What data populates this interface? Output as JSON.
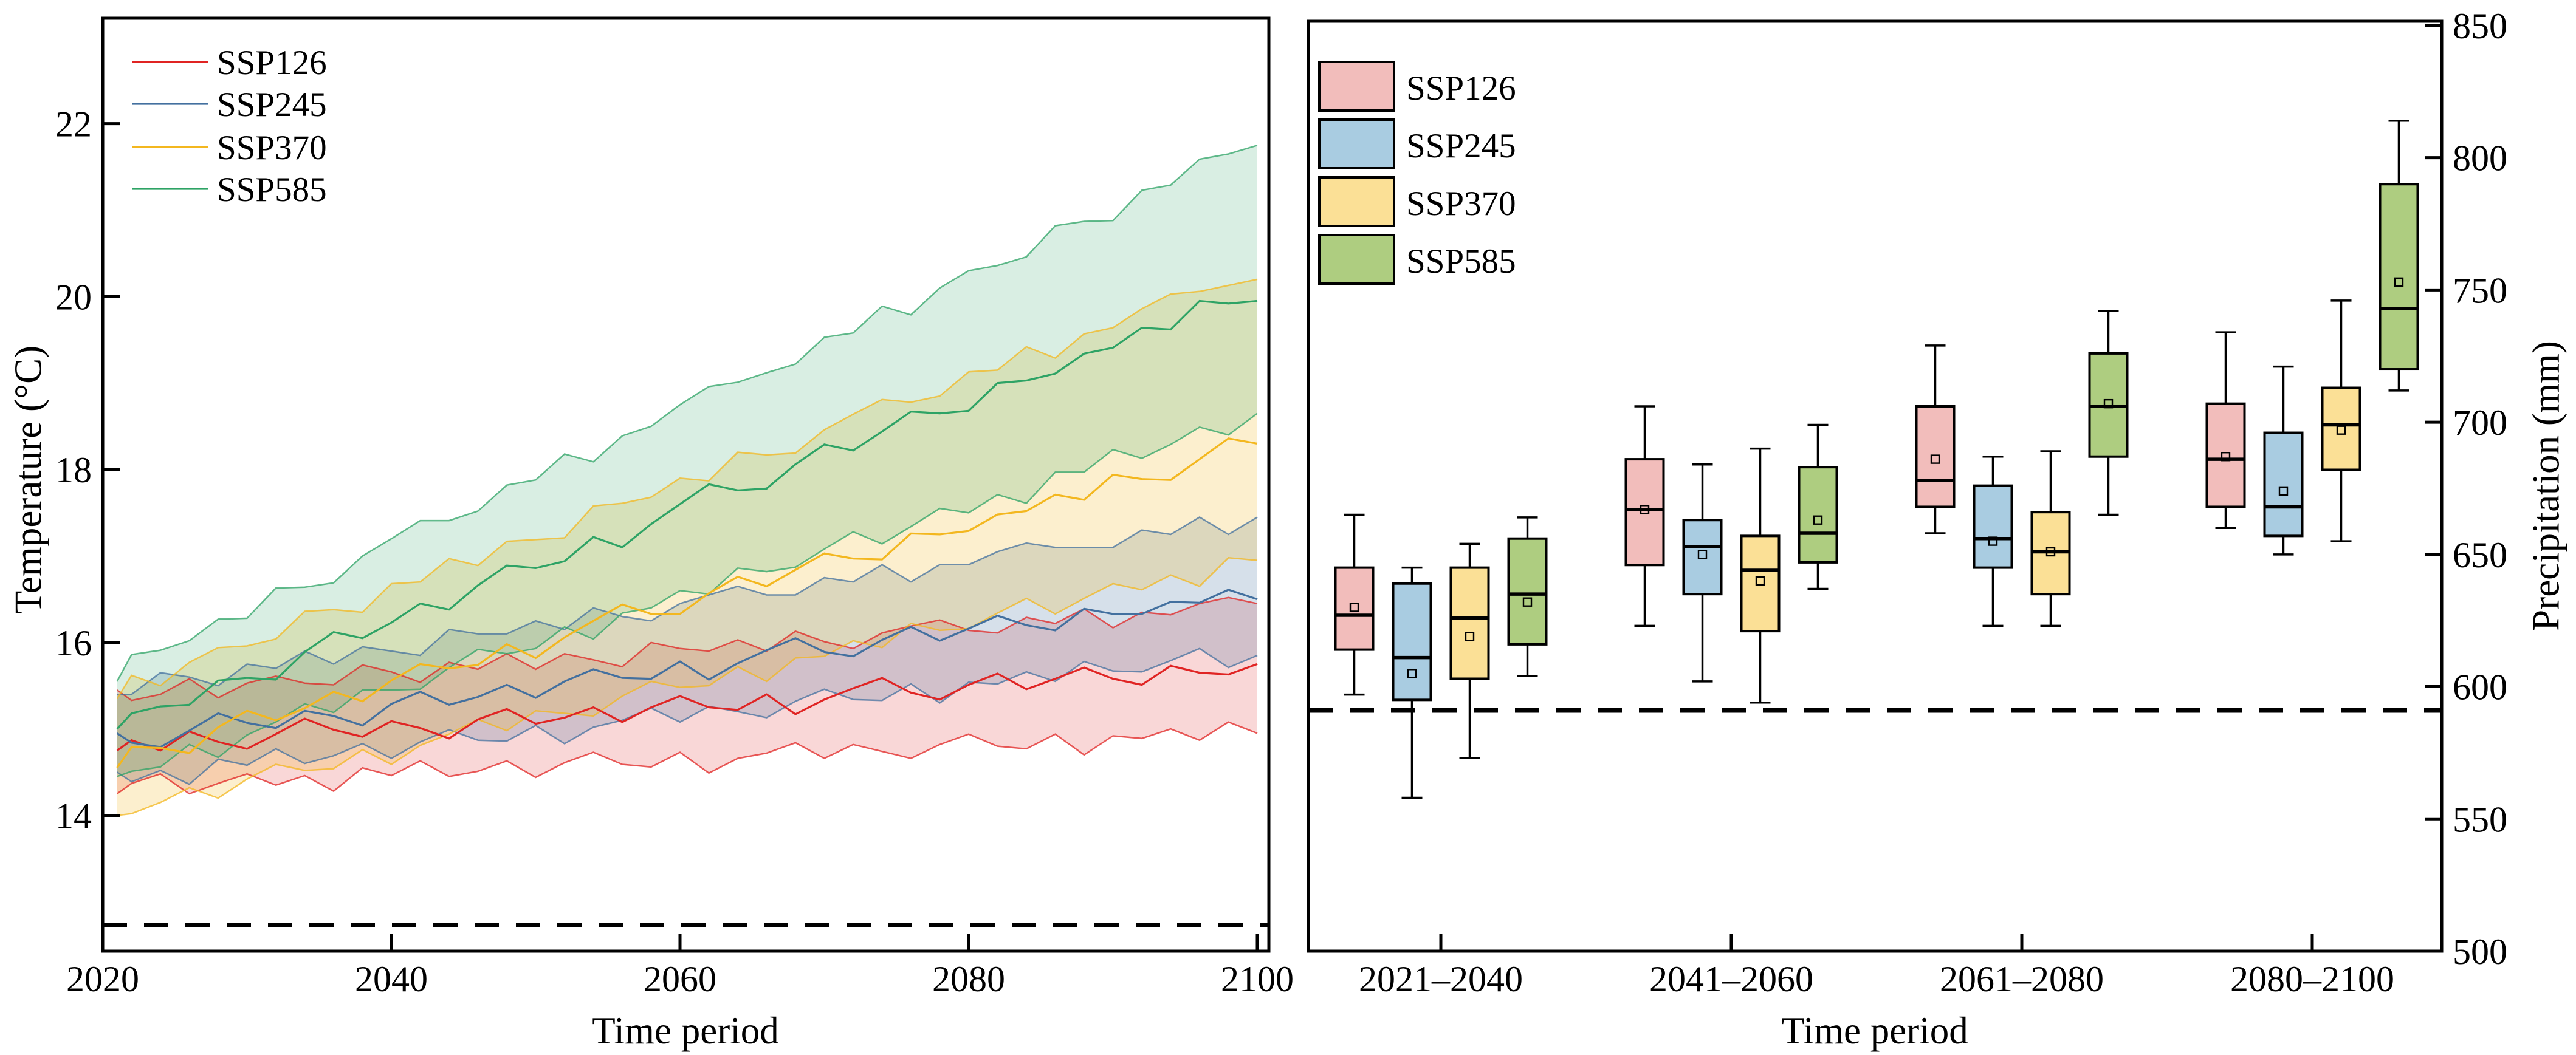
{
  "figure": {
    "panels": [
      {
        "id": "temperature",
        "xlabel": "Time period",
        "ylabel": "Temperature (°C)"
      },
      {
        "id": "precipitation",
        "xlabel": "Time period",
        "ylabel": "Precipitation (mm)"
      }
    ]
  },
  "colors": {
    "reference_line": "#000000",
    "box_edge": "#000000",
    "ssp126_line": "#e02423",
    "ssp245_line": "#43709f",
    "ssp370_line": "#f3b71f",
    "ssp585_line": "#2ea365",
    "ssp126_box": "#f2bdbb",
    "ssp245_box": "#a9cce1",
    "ssp370_box": "#fbe096",
    "ssp585_box": "#aecd80"
  },
  "chart_data": [
    {
      "type": "line",
      "title": "",
      "xlabel": "Time period",
      "ylabel": "Temperature (°C)",
      "xlim": [
        2020,
        2100.8
      ],
      "ylim": [
        12.43,
        23.22
      ],
      "xticks": [
        2020,
        2040,
        2060,
        2080,
        2100
      ],
      "yticks": [
        14,
        16,
        18,
        20,
        22
      ],
      "grid": false,
      "legend_position": "upper left",
      "legend_entries": [
        "SSP126",
        "SSP245",
        "SSP370",
        "SSP585"
      ],
      "reference_line": {
        "value": 12.73,
        "style": "dashed",
        "color": "#000000"
      },
      "x": [
        2021,
        2022,
        2024,
        2026,
        2028,
        2030,
        2032,
        2034,
        2036,
        2038,
        2040,
        2042,
        2044,
        2046,
        2048,
        2050,
        2052,
        2054,
        2056,
        2058,
        2060,
        2062,
        2064,
        2066,
        2068,
        2070,
        2072,
        2074,
        2076,
        2078,
        2080,
        2082,
        2084,
        2086,
        2088,
        2090,
        2092,
        2094,
        2096,
        2098,
        2100
      ],
      "series": [
        {
          "name": "SSP126",
          "color": "#e02423",
          "band_fill": "rgba(224,36,35,0.18)",
          "mean": [
            14.75,
            14.87,
            14.75,
            14.97,
            14.85,
            14.77,
            14.94,
            15.12,
            14.99,
            14.91,
            15.09,
            15.01,
            14.89,
            15.11,
            15.23,
            15.06,
            15.13,
            15.25,
            15.08,
            15.25,
            15.38,
            15.25,
            15.22,
            15.4,
            15.17,
            15.34,
            15.47,
            15.59,
            15.42,
            15.34,
            15.51,
            15.64,
            15.46,
            15.58,
            15.71,
            15.58,
            15.51,
            15.73,
            15.65,
            15.63,
            15.75
          ],
          "low": [
            14.25,
            14.37,
            14.48,
            14.25,
            14.37,
            14.48,
            14.35,
            14.46,
            14.28,
            14.55,
            14.46,
            14.63,
            14.45,
            14.51,
            14.63,
            14.44,
            14.61,
            14.73,
            14.59,
            14.56,
            14.73,
            14.49,
            14.66,
            14.72,
            14.84,
            14.66,
            14.82,
            14.74,
            14.66,
            14.82,
            14.94,
            14.8,
            14.77,
            14.94,
            14.7,
            14.92,
            14.89,
            15.0,
            14.87,
            15.08,
            14.95
          ],
          "high": [
            15.45,
            15.33,
            15.4,
            15.58,
            15.36,
            15.53,
            15.61,
            15.53,
            15.51,
            15.74,
            15.66,
            15.54,
            15.77,
            15.69,
            15.87,
            15.69,
            15.87,
            15.8,
            15.72,
            16.0,
            15.93,
            15.9,
            16.03,
            15.9,
            16.13,
            16.01,
            15.93,
            16.11,
            16.19,
            16.26,
            16.14,
            16.11,
            16.29,
            16.22,
            16.39,
            16.17,
            16.35,
            16.32,
            16.45,
            16.52,
            16.45
          ]
        },
        {
          "name": "SSP245",
          "color": "#43709f",
          "band_fill": "rgba(67,112,159,0.22)",
          "mean": [
            14.95,
            14.84,
            14.79,
            14.98,
            15.18,
            15.07,
            15.01,
            15.21,
            15.15,
            15.04,
            15.29,
            15.43,
            15.28,
            15.37,
            15.51,
            15.36,
            15.55,
            15.69,
            15.59,
            15.58,
            15.78,
            15.57,
            15.76,
            15.91,
            16.05,
            15.89,
            15.84,
            16.03,
            16.18,
            16.02,
            16.16,
            16.31,
            16.2,
            16.14,
            16.39,
            16.33,
            16.33,
            16.47,
            16.46,
            16.61,
            16.5
          ],
          "low": [
            14.5,
            14.39,
            14.52,
            14.36,
            14.65,
            14.58,
            14.77,
            14.6,
            14.69,
            14.83,
            14.66,
            14.85,
            14.99,
            14.87,
            14.86,
            15.04,
            14.83,
            15.02,
            15.1,
            15.24,
            15.08,
            15.26,
            15.2,
            15.13,
            15.32,
            15.46,
            15.34,
            15.33,
            15.52,
            15.3,
            15.54,
            15.52,
            15.66,
            15.55,
            15.78,
            15.67,
            15.66,
            15.79,
            15.93,
            15.71,
            15.85
          ],
          "high": [
            15.4,
            15.4,
            15.65,
            15.6,
            15.5,
            15.75,
            15.7,
            15.9,
            15.75,
            15.95,
            15.9,
            15.85,
            16.15,
            16.1,
            16.1,
            16.25,
            16.15,
            16.4,
            16.3,
            16.25,
            16.45,
            16.55,
            16.65,
            16.55,
            16.55,
            16.75,
            16.7,
            16.9,
            16.7,
            16.9,
            16.9,
            17.05,
            17.15,
            17.1,
            17.1,
            17.1,
            17.3,
            17.25,
            17.45,
            17.25,
            17.45
          ]
        },
        {
          "name": "SSP370",
          "color": "#f3b71f",
          "band_fill": "rgba(243,183,31,0.22)",
          "mean": [
            14.55,
            14.79,
            14.78,
            14.72,
            15.02,
            15.21,
            15.1,
            15.24,
            15.43,
            15.32,
            15.56,
            15.75,
            15.7,
            15.74,
            15.98,
            15.82,
            16.06,
            16.25,
            16.44,
            16.33,
            16.33,
            16.57,
            16.76,
            16.65,
            16.84,
            17.03,
            16.97,
            16.96,
            17.26,
            17.25,
            17.29,
            17.48,
            17.52,
            17.71,
            17.65,
            17.94,
            17.89,
            17.88,
            18.12,
            18.36,
            18.3
          ],
          "low": [
            14.0,
            14.02,
            14.15,
            14.32,
            14.2,
            14.42,
            14.59,
            14.52,
            14.54,
            14.76,
            14.59,
            14.81,
            14.94,
            15.11,
            14.98,
            15.21,
            15.18,
            15.15,
            15.38,
            15.55,
            15.48,
            15.5,
            15.72,
            15.55,
            15.82,
            15.84,
            16.02,
            15.94,
            16.22,
            16.14,
            16.16,
            16.34,
            16.51,
            16.33,
            16.51,
            16.68,
            16.61,
            16.78,
            16.65,
            16.98,
            16.95
          ],
          "high": [
            15.35,
            15.62,
            15.5,
            15.77,
            15.94,
            15.96,
            16.04,
            16.36,
            16.38,
            16.35,
            16.68,
            16.7,
            16.97,
            16.89,
            17.17,
            17.19,
            17.21,
            17.58,
            17.61,
            17.68,
            17.9,
            17.87,
            18.2,
            18.17,
            18.19,
            18.46,
            18.64,
            18.81,
            18.78,
            18.85,
            19.13,
            19.15,
            19.42,
            19.29,
            19.57,
            19.64,
            19.86,
            20.03,
            20.06,
            20.13,
            20.2
          ]
        },
        {
          "name": "SSP585",
          "color": "#2ea365",
          "band_fill": "rgba(46,163,101,0.18)",
          "mean": [
            15.0,
            15.18,
            15.26,
            15.28,
            15.56,
            15.59,
            15.57,
            15.89,
            16.12,
            16.05,
            16.23,
            16.45,
            16.38,
            16.66,
            16.89,
            16.86,
            16.94,
            17.22,
            17.1,
            17.37,
            17.6,
            17.83,
            17.76,
            17.78,
            18.06,
            18.29,
            18.22,
            18.44,
            18.67,
            18.65,
            18.68,
            19.0,
            19.03,
            19.11,
            19.34,
            19.41,
            19.64,
            19.62,
            19.95,
            19.92,
            19.95
          ],
          "low": [
            14.45,
            14.51,
            14.56,
            14.82,
            14.67,
            14.93,
            15.08,
            15.29,
            15.19,
            15.45,
            15.45,
            15.46,
            15.71,
            15.92,
            15.87,
            15.93,
            16.18,
            16.04,
            16.34,
            16.4,
            16.6,
            16.56,
            16.86,
            16.82,
            16.87,
            17.08,
            17.28,
            17.14,
            17.34,
            17.55,
            17.5,
            17.71,
            17.61,
            17.97,
            17.97,
            18.23,
            18.13,
            18.29,
            18.49,
            18.4,
            18.65
          ],
          "high": [
            15.55,
            15.86,
            15.91,
            16.02,
            16.27,
            16.28,
            16.63,
            16.64,
            16.69,
            17.0,
            17.2,
            17.41,
            17.41,
            17.52,
            17.82,
            17.88,
            18.18,
            18.09,
            18.39,
            18.5,
            18.75,
            18.96,
            19.01,
            19.12,
            19.22,
            19.53,
            19.58,
            19.89,
            19.79,
            20.1,
            20.3,
            20.36,
            20.46,
            20.82,
            20.87,
            20.88,
            21.23,
            21.29,
            21.59,
            21.65,
            21.75
          ]
        }
      ]
    },
    {
      "type": "box",
      "title": "",
      "xlabel": "Time period",
      "ylabel": "Precipitation (mm)",
      "ylim": [
        500,
        851.6
      ],
      "yticks": [
        500,
        550,
        600,
        650,
        700,
        750,
        800,
        850
      ],
      "grid": false,
      "legend_position": "upper left",
      "legend_entries": [
        "SSP126",
        "SSP245",
        "SSP370",
        "SSP585"
      ],
      "reference_line": {
        "value": 591,
        "style": "dashed",
        "color": "#000000"
      },
      "categories": [
        "2021–2040",
        "2041–2060",
        "2061–2080",
        "2080–2100"
      ],
      "series": [
        {
          "name": "SSP126",
          "fill": "#f2bdbb",
          "boxes": [
            {
              "whisker_low": 597,
              "q1": 614,
              "median": 627,
              "q3": 645,
              "whisker_high": 665,
              "mean": 630
            },
            {
              "whisker_low": 623,
              "q1": 646,
              "median": 667,
              "q3": 686,
              "whisker_high": 706,
              "mean": 667
            },
            {
              "whisker_low": 658,
              "q1": 668,
              "median": 678,
              "q3": 706,
              "whisker_high": 729,
              "mean": 686
            },
            {
              "whisker_low": 660,
              "q1": 668,
              "median": 686,
              "q3": 707,
              "whisker_high": 734,
              "mean": 687
            }
          ]
        },
        {
          "name": "SSP245",
          "fill": "#a9cce1",
          "boxes": [
            {
              "whisker_low": 558,
              "q1": 595,
              "median": 611,
              "q3": 639,
              "whisker_high": 645,
              "mean": 605
            },
            {
              "whisker_low": 602,
              "q1": 635,
              "median": 653,
              "q3": 663,
              "whisker_high": 684,
              "mean": 650
            },
            {
              "whisker_low": 623,
              "q1": 645,
              "median": 656,
              "q3": 676,
              "whisker_high": 687,
              "mean": 655
            },
            {
              "whisker_low": 650,
              "q1": 657,
              "median": 668,
              "q3": 696,
              "whisker_high": 721,
              "mean": 674
            }
          ]
        },
        {
          "name": "SSP370",
          "fill": "#fbe096",
          "boxes": [
            {
              "whisker_low": 573,
              "q1": 603,
              "median": 626,
              "q3": 645,
              "whisker_high": 654,
              "mean": 619
            },
            {
              "whisker_low": 594,
              "q1": 621,
              "median": 644,
              "q3": 657,
              "whisker_high": 690,
              "mean": 640
            },
            {
              "whisker_low": 623,
              "q1": 635,
              "median": 651,
              "q3": 666,
              "whisker_high": 689,
              "mean": 651
            },
            {
              "whisker_low": 655,
              "q1": 682,
              "median": 699,
              "q3": 713,
              "whisker_high": 746,
              "mean": 697
            }
          ]
        },
        {
          "name": "SSP585",
          "fill": "#aecd80",
          "boxes": [
            {
              "whisker_low": 604,
              "q1": 616,
              "median": 635,
              "q3": 656,
              "whisker_high": 664,
              "mean": 632
            },
            {
              "whisker_low": 637,
              "q1": 647,
              "median": 658,
              "q3": 683,
              "whisker_high": 699,
              "mean": 663
            },
            {
              "whisker_low": 665,
              "q1": 687,
              "median": 706,
              "q3": 726,
              "whisker_high": 742,
              "mean": 707
            },
            {
              "whisker_low": 712,
              "q1": 720,
              "median": 743,
              "q3": 790,
              "whisker_high": 814,
              "mean": 753
            }
          ]
        }
      ]
    }
  ]
}
